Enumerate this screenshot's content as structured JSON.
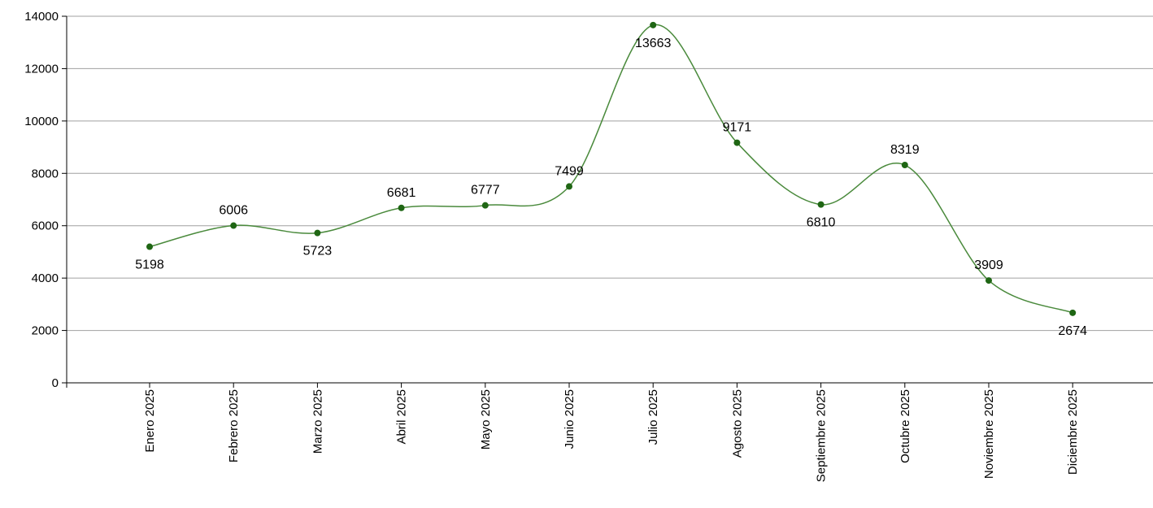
{
  "chart_data": {
    "type": "line",
    "smooth": true,
    "categories": [
      "Enero 2025",
      "Febrero 2025",
      "Marzo 2025",
      "Abril 2025",
      "Mayo 2025",
      "Junio 2025",
      "Julio 2025",
      "Agosto 2025",
      "Septiembre 2025",
      "Octubre 2025",
      "Noviembre 2025",
      "Diciembre 2025"
    ],
    "series": [
      {
        "values": [
          5198,
          6006,
          5723,
          6681,
          6777,
          7499,
          13663,
          9171,
          6810,
          8319,
          3909,
          2674
        ],
        "data_labels": [
          "5198",
          "6006",
          "5723",
          "6681",
          "6777",
          "7499",
          "13663",
          "9171",
          "6810",
          "8319",
          "3909",
          "2674"
        ],
        "label_side": [
          "below",
          "above",
          "below",
          "above",
          "above",
          "above",
          "below",
          "above",
          "below",
          "above",
          "above",
          "below"
        ],
        "color": "#4a8a3c",
        "marker_color": "#1f6614"
      }
    ],
    "y_ticks": [
      0,
      2000,
      4000,
      6000,
      8000,
      10000,
      12000,
      14000
    ],
    "y_tick_labels": [
      "0",
      "2000",
      "4000",
      "6000",
      "8000",
      "10000",
      "12000",
      "14000"
    ],
    "ylim": [
      0,
      14000
    ],
    "grid": {
      "horizontal": true,
      "vertical": false,
      "color": "#a0a0a0"
    },
    "title": "",
    "xlabel": "",
    "ylabel": ""
  }
}
